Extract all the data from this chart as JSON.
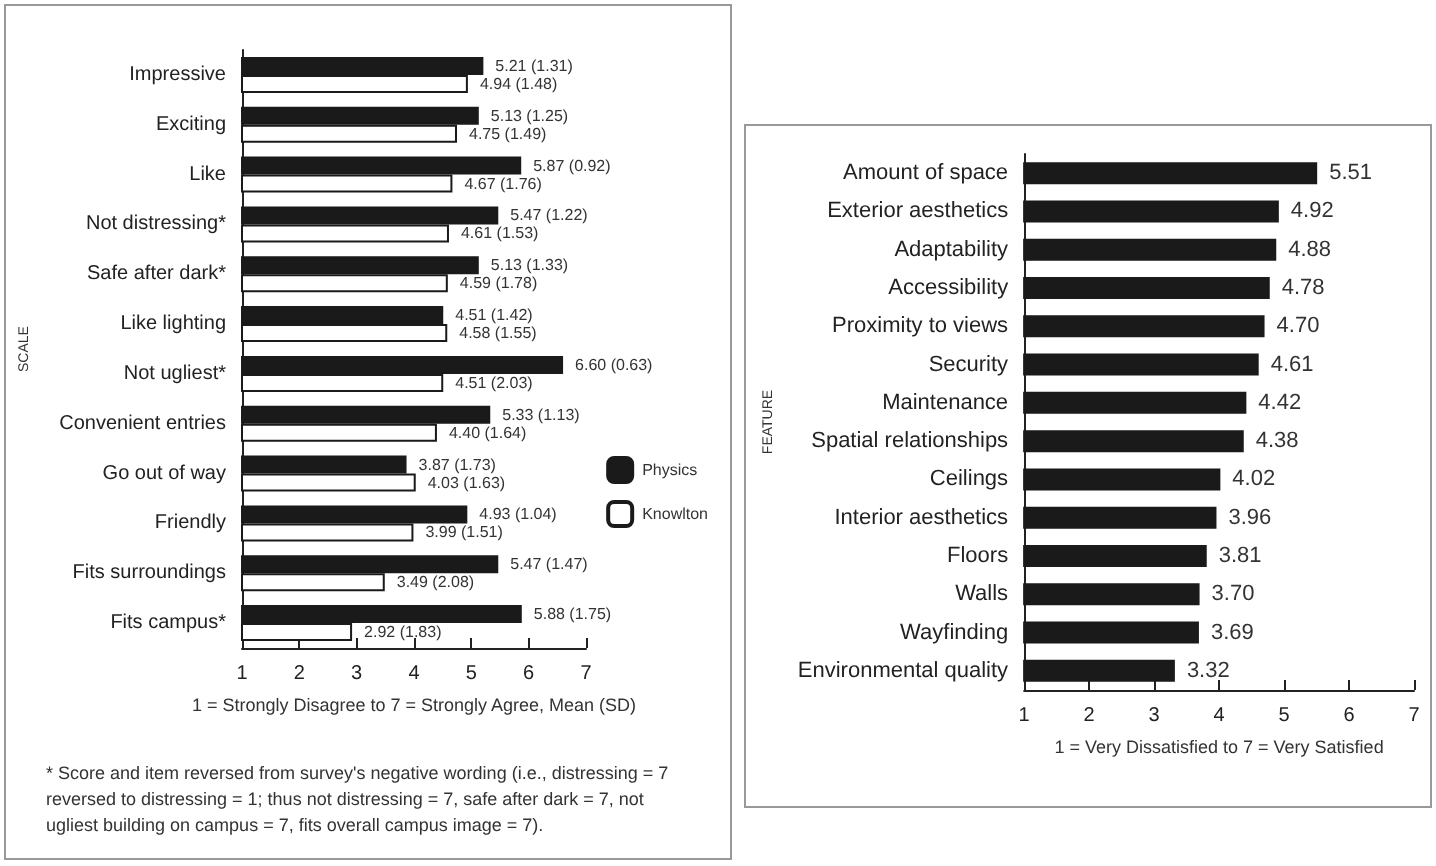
{
  "chart_data": [
    {
      "type": "bar",
      "orientation": "horizontal",
      "ylabel": "SCALE",
      "xlabel": "1 = Strongly Disagree to 7 = Strongly Agree, Mean (SD)",
      "categories": [
        "Impressive",
        "Exciting",
        "Like",
        "Not distressing*",
        "Safe after dark*",
        "Like lighting",
        "Not ugliest*",
        "Convenient entries",
        "Go out of way",
        "Friendly",
        "Fits surroundings",
        "Fits campus*"
      ],
      "series": [
        {
          "name": "Physics",
          "color": "#1a1a1a",
          "values": [
            5.21,
            5.13,
            5.87,
            5.47,
            5.13,
            4.51,
            6.6,
            5.33,
            3.87,
            4.93,
            5.47,
            5.88
          ],
          "value_labels": [
            "5.21 (1.31)",
            "5.13 (1.25)",
            "5.87 (0.92)",
            "5.47 (1.22)",
            "5.13 (1.33)",
            "4.51 (1.42)",
            "6.60 (0.63)",
            "5.33 (1.13)",
            "3.87 (1.73)",
            "4.93 (1.04)",
            "5.47 (1.47)",
            "5.88 (1.75)"
          ]
        },
        {
          "name": "Knowlton",
          "color": "#ffffff",
          "values": [
            4.94,
            4.75,
            4.67,
            4.61,
            4.59,
            4.58,
            4.51,
            4.4,
            4.03,
            3.99,
            3.49,
            2.92
          ],
          "value_labels": [
            "4.94 (1.48)",
            "4.75 (1.49)",
            "4.67 (1.76)",
            "4.61 (1.53)",
            "4.59 (1.78)",
            "4.58 (1.55)",
            "4.51 (2.03)",
            "4.40 (1.64)",
            "4.03 (1.63)",
            "3.99 (1.51)",
            "3.49 (2.08)",
            "2.92 (1.83)"
          ]
        }
      ],
      "xlim": [
        1,
        7
      ],
      "xticks": [
        1,
        2,
        3,
        4,
        5,
        6,
        7
      ],
      "grid": false,
      "legend": "right",
      "annotations": [
        "* Score and item reversed from survey's negative wording (i.e., distressing = 7 reversed to distressing = 1; thus not distressing = 7, safe after dark = 7, not ugliest building on campus = 7, fits overall campus image = 7)."
      ]
    },
    {
      "type": "bar",
      "orientation": "horizontal",
      "ylabel": "FEATURE",
      "xlabel": "1 = Very Dissatisfied to 7 = Very Satisfied",
      "categories": [
        "Amount of space",
        "Exterior aesthetics",
        "Adaptability",
        "Accessibility",
        "Proximity to views",
        "Security",
        "Maintenance",
        "Spatial relationships",
        "Ceilings",
        "Interior aesthetics",
        "Floors",
        "Walls",
        "Wayfinding",
        "Environmental quality"
      ],
      "values": [
        5.51,
        4.92,
        4.88,
        4.78,
        4.7,
        4.61,
        4.42,
        4.38,
        4.02,
        3.96,
        3.81,
        3.7,
        3.69,
        3.32
      ],
      "color": "#1a1a1a",
      "value_labels": [
        "5.51",
        "4.92",
        "4.88",
        "4.78",
        "4.70",
        "4.61",
        "4.42",
        "4.38",
        "4.02",
        "3.96",
        "3.81",
        "3.70",
        "3.69",
        "3.32"
      ],
      "xlim": [
        1,
        7
      ],
      "xticks": [
        1,
        2,
        3,
        4,
        5,
        6,
        7
      ],
      "grid": false,
      "legend": false
    }
  ]
}
